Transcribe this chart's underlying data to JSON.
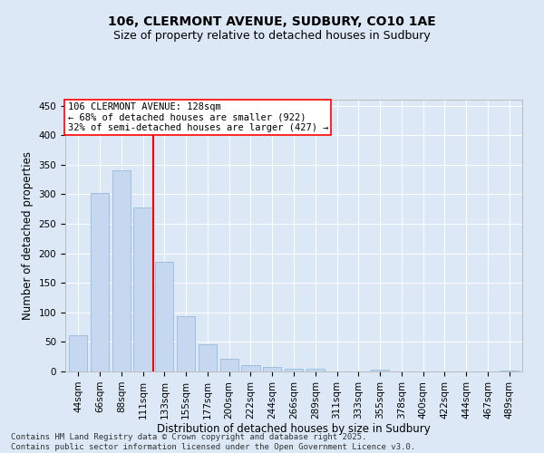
{
  "title": "106, CLERMONT AVENUE, SUDBURY, CO10 1AE",
  "subtitle": "Size of property relative to detached houses in Sudbury",
  "xlabel": "Distribution of detached houses by size in Sudbury",
  "ylabel": "Number of detached properties",
  "categories": [
    "44sqm",
    "66sqm",
    "88sqm",
    "111sqm",
    "133sqm",
    "155sqm",
    "177sqm",
    "200sqm",
    "222sqm",
    "244sqm",
    "266sqm",
    "289sqm",
    "311sqm",
    "333sqm",
    "355sqm",
    "378sqm",
    "400sqm",
    "422sqm",
    "444sqm",
    "467sqm",
    "489sqm"
  ],
  "values": [
    62,
    302,
    340,
    278,
    185,
    93,
    46,
    22,
    11,
    7,
    5,
    4,
    0,
    0,
    3,
    0,
    0,
    0,
    0,
    0,
    2
  ],
  "bar_color": "#c5d8f0",
  "bar_edge_color": "#8ab4d8",
  "vline_color": "red",
  "vline_index": 3.5,
  "annotation_text": "106 CLERMONT AVENUE: 128sqm\n← 68% of detached houses are smaller (922)\n32% of semi-detached houses are larger (427) →",
  "annotation_box_color": "white",
  "annotation_box_edge_color": "red",
  "ylim": [
    0,
    460
  ],
  "yticks": [
    0,
    50,
    100,
    150,
    200,
    250,
    300,
    350,
    400,
    450
  ],
  "background_color": "#dce8f5",
  "plot_bg_color": "#dce8f5",
  "footer": "Contains HM Land Registry data © Crown copyright and database right 2025.\nContains public sector information licensed under the Open Government Licence v3.0.",
  "title_fontsize": 10,
  "subtitle_fontsize": 9,
  "xlabel_fontsize": 8.5,
  "ylabel_fontsize": 8.5,
  "tick_fontsize": 7.5,
  "footer_fontsize": 6.5,
  "annotation_fontsize": 7.5
}
